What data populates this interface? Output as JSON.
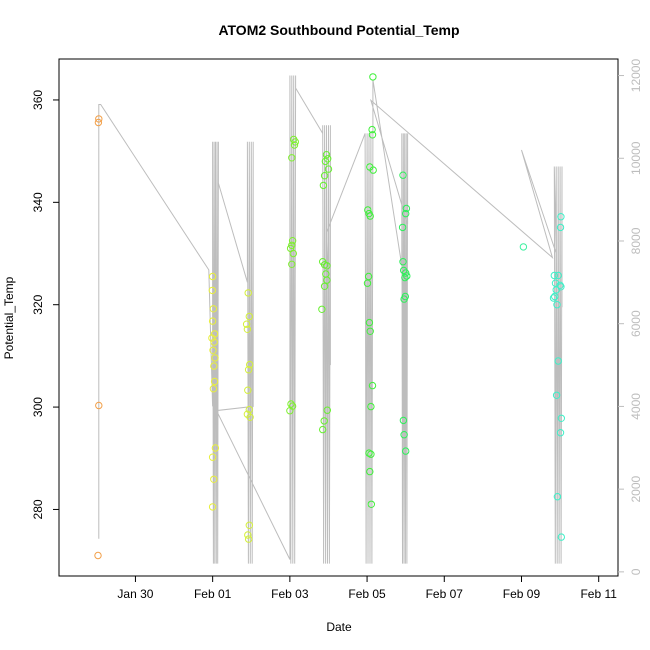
{
  "chart_data": {
    "type": "scatter",
    "title": "ATOM2 Southbound Potential_Temp",
    "xlabel": "Date",
    "ylabel": "Potential_Temp",
    "x_ticks": [
      "Jan 30",
      "Feb 01",
      "Feb 03",
      "Feb 05",
      "Feb 07",
      "Feb 09",
      "Feb 11"
    ],
    "x_tick_days": [
      0,
      2,
      4,
      6,
      8,
      10,
      12
    ],
    "xlim_days": [
      -1.98,
      12.5
    ],
    "ylim": [
      267,
      368
    ],
    "y_ticks": [
      280,
      300,
      320,
      340,
      360
    ],
    "secondary_y": {
      "ylim": [
        -100,
        12400
      ],
      "ticks": [
        0,
        2000,
        4000,
        6000,
        8000,
        10000,
        12000
      ],
      "color": "#bdbdbd"
    },
    "grid": false,
    "legend": "none",
    "series": [
      {
        "color": "#f2a04a",
        "points": [
          [
            -0.95,
            356.3
          ],
          [
            -0.96,
            355.6
          ],
          [
            -0.95,
            300.3
          ],
          [
            -0.97,
            271.0
          ]
        ]
      },
      {
        "color": "#e8ef3c",
        "points": [
          [
            2.0,
            325.5
          ],
          [
            1.99,
            322.8
          ],
          [
            2.02,
            319.2
          ],
          [
            2.0,
            316.8
          ],
          [
            2.05,
            314.3
          ],
          [
            1.98,
            313.5
          ],
          [
            2.04,
            312.7
          ],
          [
            2.01,
            311.1
          ],
          [
            2.06,
            309.6
          ],
          [
            2.03,
            308.0
          ],
          [
            2.05,
            305.0
          ],
          [
            2.02,
            303.6
          ],
          [
            2.07,
            292.0
          ],
          [
            2.0,
            290.2
          ],
          [
            2.03,
            285.9
          ],
          [
            2.0,
            280.5
          ]
        ]
      },
      {
        "color": "#d4f03a",
        "points": [
          [
            2.92,
            322.3
          ],
          [
            2.95,
            317.7
          ],
          [
            2.88,
            316.2
          ],
          [
            2.9,
            315.2
          ],
          [
            2.96,
            308.3
          ],
          [
            2.93,
            307.3
          ],
          [
            2.91,
            303.3
          ],
          [
            2.95,
            299.5
          ],
          [
            2.9,
            298.6
          ],
          [
            2.97,
            298.0
          ],
          [
            2.95,
            276.9
          ],
          [
            2.91,
            275.0
          ],
          [
            2.93,
            274.2
          ]
        ]
      },
      {
        "color": "#7ef02e",
        "points": [
          [
            4.1,
            352.3
          ],
          [
            4.14,
            351.8
          ],
          [
            4.12,
            351.2
          ],
          [
            4.05,
            348.7
          ],
          [
            4.07,
            332.5
          ],
          [
            4.05,
            331.6
          ],
          [
            4.02,
            331.0
          ],
          [
            4.09,
            330.0
          ],
          [
            4.05,
            327.9
          ],
          [
            4.03,
            300.6
          ],
          [
            4.07,
            300.2
          ],
          [
            4.0,
            299.3
          ]
        ]
      },
      {
        "color": "#66f02e",
        "points": [
          [
            4.95,
            349.3
          ],
          [
            4.98,
            348.5
          ],
          [
            4.92,
            348.0
          ],
          [
            5.0,
            346.5
          ],
          [
            4.9,
            345.2
          ],
          [
            4.87,
            343.3
          ],
          [
            4.85,
            328.4
          ],
          [
            4.9,
            327.8
          ],
          [
            4.96,
            327.6
          ],
          [
            4.93,
            326.0
          ],
          [
            4.96,
            324.8
          ],
          [
            4.9,
            323.6
          ],
          [
            4.83,
            319.1
          ],
          [
            4.97,
            299.4
          ],
          [
            4.89,
            297.3
          ],
          [
            4.85,
            295.6
          ]
        ]
      },
      {
        "color": "#3ff03a",
        "points": [
          [
            6.15,
            364.5
          ],
          [
            6.13,
            354.2
          ],
          [
            6.14,
            353.2
          ],
          [
            6.07,
            346.9
          ],
          [
            6.16,
            346.3
          ],
          [
            6.02,
            338.5
          ],
          [
            6.05,
            337.8
          ],
          [
            6.08,
            337.3
          ],
          [
            6.04,
            325.5
          ],
          [
            6.01,
            324.2
          ],
          [
            6.06,
            316.5
          ],
          [
            6.08,
            314.8
          ],
          [
            6.14,
            304.2
          ],
          [
            6.1,
            300.1
          ],
          [
            6.05,
            291.0
          ],
          [
            6.1,
            290.8
          ],
          [
            6.07,
            287.4
          ],
          [
            6.11,
            281.0
          ]
        ]
      },
      {
        "color": "#2df05a",
        "points": [
          [
            6.93,
            345.3
          ],
          [
            7.02,
            338.8
          ],
          [
            7.0,
            337.8
          ],
          [
            6.92,
            335.1
          ],
          [
            6.93,
            328.4
          ],
          [
            6.95,
            326.7
          ],
          [
            7.0,
            326.2
          ],
          [
            7.03,
            325.6
          ],
          [
            6.98,
            325.3
          ],
          [
            6.99,
            321.6
          ],
          [
            6.96,
            321.1
          ],
          [
            6.94,
            297.4
          ],
          [
            6.96,
            294.6
          ],
          [
            7.0,
            291.4
          ]
        ]
      },
      {
        "color": "#3ef0a0",
        "points": [
          [
            10.05,
            331.3
          ]
        ]
      },
      {
        "color": "#3ef0c8",
        "points": [
          [
            10.85,
            325.7
          ],
          [
            10.95,
            325.7
          ],
          [
            10.88,
            324.2
          ],
          [
            11.0,
            323.8
          ],
          [
            11.02,
            323.5
          ],
          [
            10.9,
            322.9
          ],
          [
            10.86,
            321.6
          ],
          [
            10.83,
            321.3
          ],
          [
            10.92,
            320.0
          ],
          [
            11.02,
            337.2
          ],
          [
            11.01,
            335.1
          ],
          [
            10.95,
            309.0
          ],
          [
            10.91,
            302.3
          ],
          [
            11.03,
            297.8
          ],
          [
            11.01,
            295.0
          ],
          [
            10.93,
            282.5
          ],
          [
            11.03,
            274.6
          ]
        ]
      }
    ]
  }
}
